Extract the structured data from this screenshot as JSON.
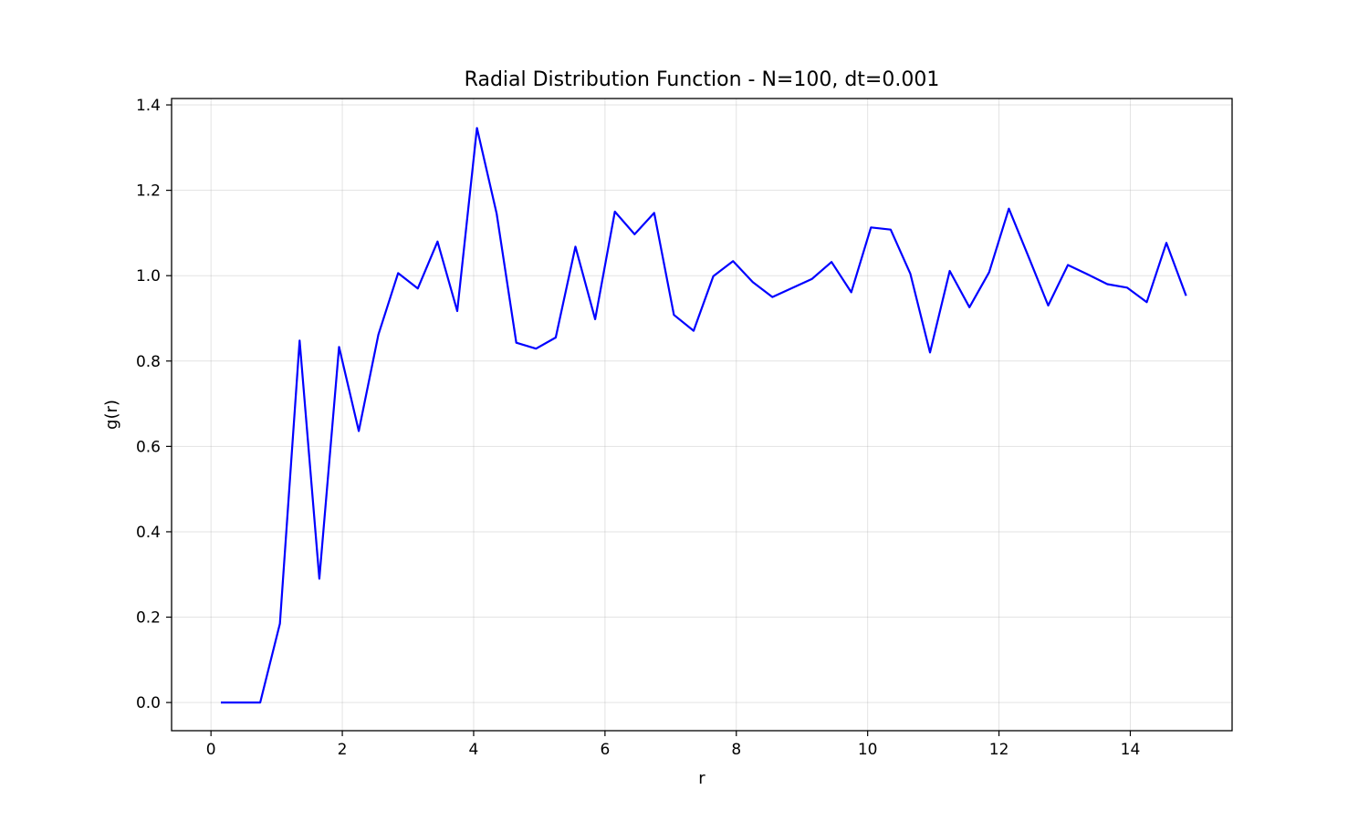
{
  "chart_data": {
    "type": "line",
    "title": "Radial Distribution Function - N=100, dt=0.001",
    "xlabel": "r",
    "ylabel": "g(r)",
    "xlim": [
      -0.6,
      15.55
    ],
    "ylim": [
      -0.066,
      1.415
    ],
    "xticks": [
      0,
      2,
      4,
      6,
      8,
      10,
      12,
      14
    ],
    "yticks": [
      0.0,
      0.2,
      0.4,
      0.6,
      0.8,
      1.0,
      1.2,
      1.4
    ],
    "ytick_labels": [
      "0.0",
      "0.2",
      "0.4",
      "0.6",
      "0.8",
      "1.0",
      "1.2",
      "1.4"
    ],
    "grid": true,
    "legend": "none",
    "series": [
      {
        "color": "#0000ff",
        "x": [
          0.15,
          0.45,
          0.75,
          1.05,
          1.35,
          1.65,
          1.95,
          2.25,
          2.55,
          2.85,
          3.15,
          3.45,
          3.75,
          4.05,
          4.35,
          4.65,
          4.95,
          5.25,
          5.55,
          5.85,
          6.15,
          6.45,
          6.75,
          7.05,
          7.35,
          7.65,
          7.95,
          8.25,
          8.55,
          8.85,
          9.15,
          9.45,
          9.75,
          10.05,
          10.35,
          10.65,
          10.95,
          11.25,
          11.55,
          11.85,
          12.15,
          12.45,
          12.75,
          13.05,
          13.35,
          13.65,
          13.95,
          14.25,
          14.55,
          14.85
        ],
        "y": [
          0.0,
          0.0,
          0.0,
          0.185,
          0.848,
          0.29,
          0.833,
          0.636,
          0.862,
          1.006,
          0.97,
          1.08,
          0.917,
          1.346,
          1.145,
          0.843,
          0.829,
          0.855,
          1.068,
          0.898,
          1.15,
          1.097,
          1.147,
          0.908,
          0.871,
          0.999,
          1.034,
          0.985,
          0.95,
          0.971,
          0.992,
          1.032,
          0.961,
          1.113,
          1.108,
          1.005,
          0.82,
          1.011,
          0.926,
          1.008,
          1.157,
          1.044,
          0.93,
          1.025,
          1.003,
          0.98,
          0.972,
          0.938,
          1.077,
          0.953
        ]
      }
    ]
  }
}
